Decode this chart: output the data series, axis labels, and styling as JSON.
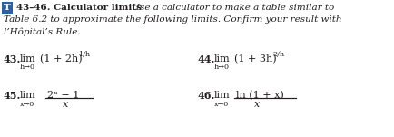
{
  "title_T": "T",
  "title_bold": "43–46. Calculator limits",
  "title_italic_line1": " Use a calculator to make a table similar to",
  "title_italic_line2": "Table 6.2 to approximate the following limits. Confirm your result with",
  "title_italic_line3": "l’Hôpital’s Rule.",
  "p43_num": "43.",
  "p43_lim": "lim",
  "p43_sub": "h→0",
  "p43_expr": "(1 + 2h)",
  "p43_sup": "1/h",
  "p44_num": "44.",
  "p44_lim": "lim",
  "p44_sub": "h→0",
  "p44_expr": "(1 + 3h)",
  "p44_sup": "2/h",
  "p45_num": "45.",
  "p45_lim": "lim",
  "p45_sub": "x→0",
  "p45_numer": "2ˣ − 1",
  "p45_denom": "x",
  "p46_num": "46.",
  "p46_lim": "lim",
  "p46_sub": "x→0",
  "p46_numer": "ln (1 + x)",
  "p46_denom": "x",
  "bg": "#ffffff",
  "fg": "#231f20",
  "box_color": "#2d5fa6",
  "figsize": [
    4.34,
    1.51
  ],
  "dpi": 100
}
